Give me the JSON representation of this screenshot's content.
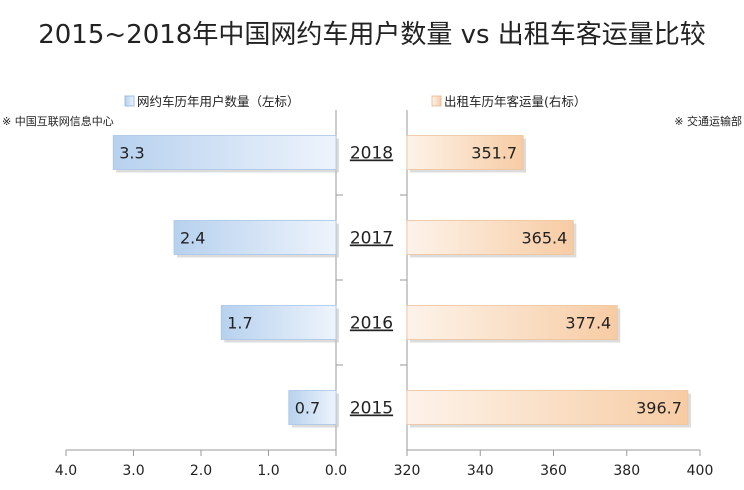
{
  "chart_data": {
    "type": "bar",
    "title": "2015~2018年中国网约车用户数量 vs 出租车客运量比较",
    "categories": [
      "2018",
      "2017",
      "2016",
      "2015"
    ],
    "left": {
      "legend": "网约车历年用户数量（左标）",
      "source": "※ 中国互联网信息中心",
      "values": [
        3.3,
        2.4,
        1.7,
        0.7
      ],
      "labels": [
        "3.3",
        "2.4",
        "1.7",
        "0.7"
      ],
      "axis_range": [
        4.0,
        0.0
      ],
      "ticks": [
        "4.0",
        "3.0",
        "2.0",
        "1.0",
        "0.0"
      ],
      "tick_values": [
        4,
        3,
        2,
        1,
        0
      ],
      "color": "#b9d3ef"
    },
    "right": {
      "legend": "出租车历年客运量(右标）",
      "source": "※ 交通运输部",
      "values": [
        351.7,
        365.4,
        377.4,
        396.7
      ],
      "labels": [
        "351.7",
        "365.4",
        "377.4",
        "396.7"
      ],
      "axis_range": [
        320,
        400
      ],
      "ticks": [
        "320",
        "340",
        "360",
        "380",
        "400"
      ],
      "tick_values": [
        320,
        340,
        360,
        380,
        400
      ],
      "color": "#f8d3b0"
    }
  }
}
